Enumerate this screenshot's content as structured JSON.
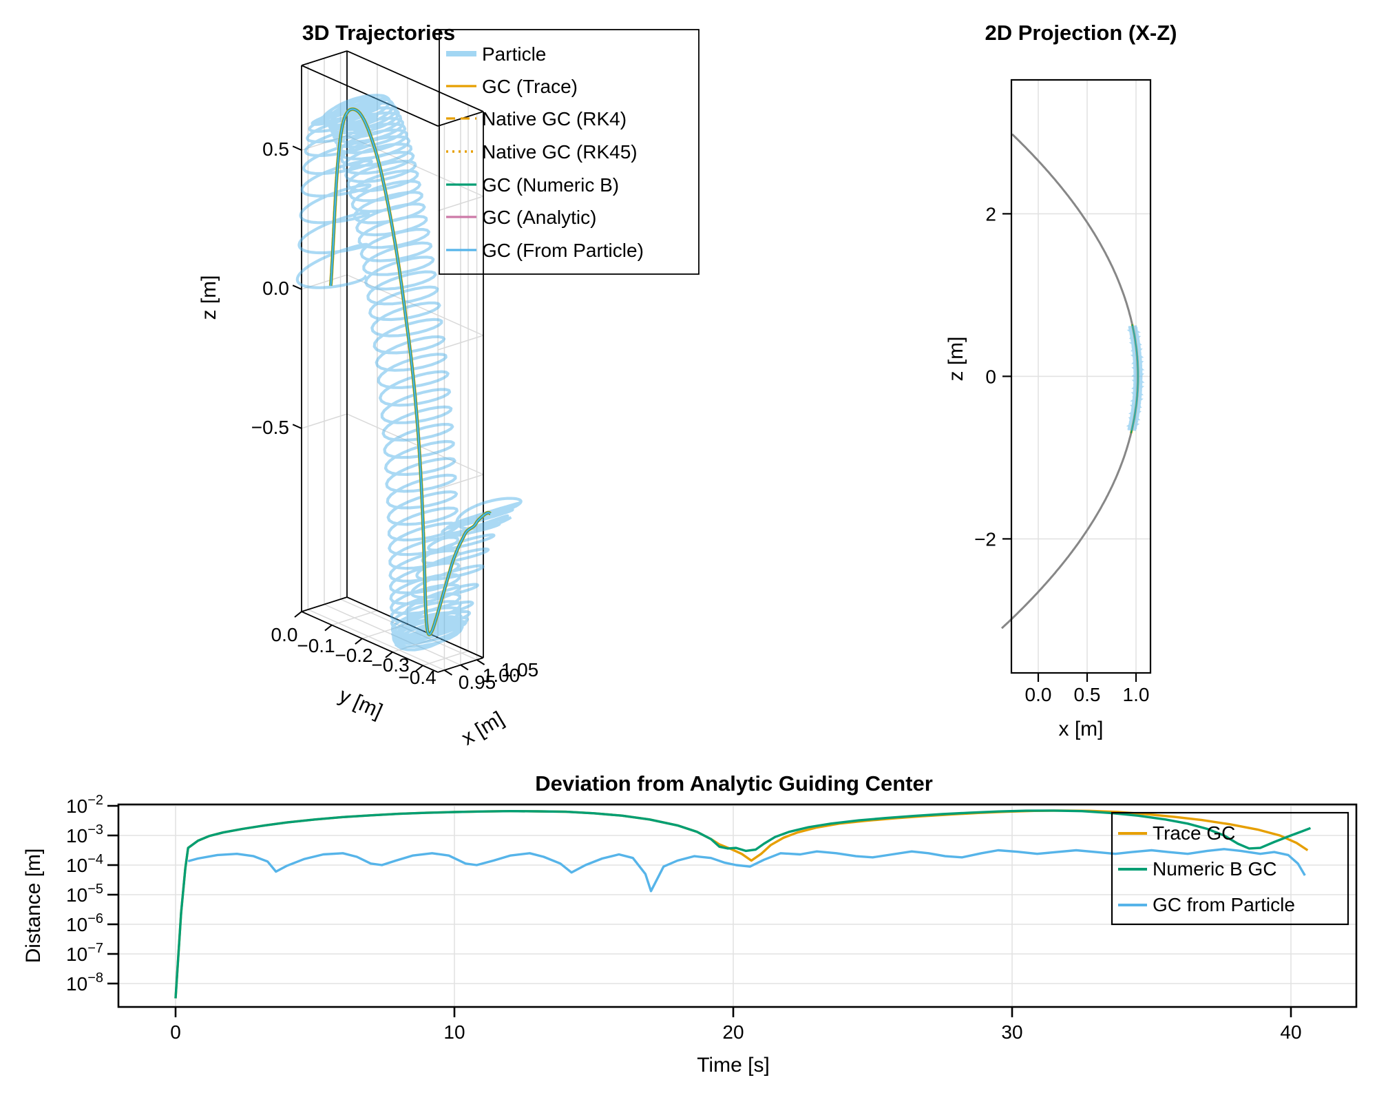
{
  "colors": {
    "particle": "#56B4E9",
    "trace_gc": "#E69F00",
    "numeric_b_gc": "#009E73",
    "analytic_gc": "#CC79A7",
    "from_particle_gc": "#56B4E9",
    "fieldline": "#878787",
    "grid": "#e2e2e2",
    "grid3d": "#d9d9d9",
    "frame": "#000000"
  },
  "panels": {
    "trajectories3d": {
      "title": "3D Trajectories",
      "xlabel": "x [m]",
      "ylabel": "y [m]",
      "zlabel": "z [m]",
      "xticks": [
        "0.95",
        "1.00",
        "1.05"
      ],
      "yticks": [
        "0.0",
        "−0.1",
        "−0.2",
        "−0.3",
        "−0.4"
      ],
      "zticks": [
        "0.5",
        "0.0",
        "−0.5"
      ],
      "legend": [
        {
          "label": "Particle",
          "color": "#56B4E9",
          "style": "thick"
        },
        {
          "label": "GC (Trace)",
          "color": "#E69F00",
          "style": "solid"
        },
        {
          "label": "Native GC (RK4)",
          "color": "#E69F00",
          "style": "dashed"
        },
        {
          "label": "Native GC (RK45)",
          "color": "#E69F00",
          "style": "dotted"
        },
        {
          "label": "GC (Numeric B)",
          "color": "#009E73",
          "style": "solid"
        },
        {
          "label": "GC (Analytic)",
          "color": "#CC79A7",
          "style": "solid"
        },
        {
          "label": "GC (From Particle)",
          "color": "#56B4E9",
          "style": "solid"
        }
      ]
    },
    "projection2d": {
      "title": "2D Projection (X-Z)",
      "xlabel": "x [m]",
      "ylabel": "z [m]",
      "xticks": [
        "0.0",
        "0.5",
        "1.0"
      ],
      "yticks": [
        "2",
        "0",
        "−2"
      ]
    },
    "deviation": {
      "title": "Deviation from Analytic Guiding Center",
      "xlabel": "Time [s]",
      "ylabel": "Distance [m]",
      "xticks": [
        "0",
        "10",
        "20",
        "30",
        "40"
      ],
      "ytick_exponents": [
        "−2",
        "−3",
        "−4",
        "−5",
        "−6",
        "−7",
        "−8"
      ],
      "legend": [
        {
          "label": "Trace GC",
          "color": "#E69F00"
        },
        {
          "label": "Numeric B GC",
          "color": "#009E73"
        },
        {
          "label": "GC from Particle",
          "color": "#56B4E9"
        }
      ]
    }
  },
  "chart_data": [
    {
      "type": "line",
      "panel": "trajectories3d",
      "title": "3D Trajectories",
      "xlabel": "x [m]",
      "ylabel": "y [m]",
      "zlabel": "z [m]",
      "xticks": [
        0.95,
        1.0,
        1.05
      ],
      "yticks": [
        0.0,
        -0.1,
        -0.2,
        -0.3,
        -0.4
      ],
      "zticks": [
        0.5,
        0.0,
        -0.5
      ],
      "gc_time_step": 1.0,
      "gc_y": [
        0.0,
        -0.007,
        -0.014,
        -0.022,
        -0.031,
        -0.04,
        -0.05,
        -0.061,
        -0.072,
        -0.085,
        -0.099,
        -0.114,
        -0.13,
        -0.148,
        -0.166,
        -0.185,
        -0.205,
        -0.225,
        -0.248,
        -0.268,
        -0.285,
        -0.3,
        -0.312,
        -0.322,
        -0.33,
        -0.337,
        -0.345,
        -0.353,
        -0.362,
        -0.371,
        -0.38,
        -0.389,
        -0.4,
        -0.412,
        -0.424,
        -0.445,
        -0.455,
        -0.465,
        -0.472,
        -0.478,
        -0.483,
        -0.488
      ],
      "gc_z_visual": [
        -0.02,
        0.13,
        0.27,
        0.39,
        0.485,
        0.555,
        0.605,
        0.635,
        0.65,
        0.655,
        0.648,
        0.622,
        0.575,
        0.505,
        0.408,
        0.285,
        0.14,
        -0.025,
        -0.21,
        -0.4,
        -0.585,
        -0.76,
        -0.905,
        -1.015,
        -1.08,
        -1.105,
        -1.09,
        -1.047,
        -0.99,
        -0.932,
        -0.877,
        -0.826,
        -0.78,
        -0.74,
        -0.706,
        -0.678,
        -0.655,
        -0.638,
        -0.627,
        -0.619,
        -0.615,
        -0.616
      ],
      "x_model": {
        "base": 1.02,
        "fieldline_coeff": 0.1,
        "z_visual_to_data": 0.59,
        "drift_per_s": 0.0012
      },
      "gyro": {
        "r_x": 0.1,
        "r_perp": 0.038,
        "omega_slow": 8,
        "omega_fast": 20,
        "omega_end": 5
      },
      "t_end": 41
    },
    {
      "type": "line",
      "panel": "projection2d",
      "title": "2D Projection (X-Z)",
      "xlabel": "x [m]",
      "ylabel": "z [m]",
      "xticks": [
        0.0,
        0.5,
        1.0
      ],
      "yticks": [
        2,
        0,
        -2
      ],
      "fieldline": {
        "apex_x": 1.02,
        "curvature": 0.145,
        "z_range": [
          -3.12,
          2.98
        ]
      },
      "particle_band": {
        "x_amplitude": 0.045,
        "z_range": [
          -0.66,
          0.615
        ],
        "gyro_wavelength_z": 0.022
      },
      "gc_overlay_z_range": [
        -0.72,
        0.64
      ]
    },
    {
      "type": "line",
      "panel": "deviation",
      "title": "Deviation from Analytic Guiding Center",
      "xlabel": "Time [s]",
      "ylabel": "Distance [m]",
      "xlim": [
        -2,
        42.3
      ],
      "ylim_exponents": [
        -8.8,
        -1.95
      ],
      "series": [
        {
          "name": "Trace GC",
          "color": "#E69F00",
          "points_t_log10": [
            [
              0,
              -8.5
            ],
            [
              0.2,
              -5.6
            ],
            [
              0.35,
              -4.1
            ],
            [
              0.45,
              -3.42
            ],
            [
              0.8,
              -3.18
            ],
            [
              1.2,
              -3.02
            ],
            [
              1.7,
              -2.9
            ],
            [
              2.4,
              -2.78
            ],
            [
              3.2,
              -2.66
            ],
            [
              4,
              -2.56
            ],
            [
              5,
              -2.46
            ],
            [
              6,
              -2.38
            ],
            [
              7,
              -2.32
            ],
            [
              8,
              -2.27
            ],
            [
              9,
              -2.235
            ],
            [
              10,
              -2.21
            ],
            [
              11,
              -2.19
            ],
            [
              12,
              -2.18
            ],
            [
              13,
              -2.185
            ],
            [
              14,
              -2.2
            ],
            [
              15,
              -2.25
            ],
            [
              16,
              -2.33
            ],
            [
              17,
              -2.46
            ],
            [
              18,
              -2.66
            ],
            [
              18.7,
              -2.88
            ],
            [
              19.2,
              -3.12
            ],
            [
              19.5,
              -3.3
            ],
            [
              19.9,
              -3.45
            ],
            [
              20.3,
              -3.62
            ],
            [
              20.65,
              -3.85
            ],
            [
              21,
              -3.62
            ],
            [
              21.35,
              -3.32
            ],
            [
              21.8,
              -3.08
            ],
            [
              22.3,
              -2.9
            ],
            [
              23,
              -2.73
            ],
            [
              23.8,
              -2.6
            ],
            [
              24.8,
              -2.5
            ],
            [
              25.8,
              -2.42
            ],
            [
              26.8,
              -2.35
            ],
            [
              27.8,
              -2.29
            ],
            [
              28.8,
              -2.24
            ],
            [
              29.8,
              -2.2
            ],
            [
              30.8,
              -2.17
            ],
            [
              31.8,
              -2.16
            ],
            [
              32.8,
              -2.17
            ],
            [
              33.8,
              -2.21
            ],
            [
              34.8,
              -2.28
            ],
            [
              35.8,
              -2.37
            ],
            [
              36.8,
              -2.48
            ],
            [
              37.8,
              -2.62
            ],
            [
              38.8,
              -2.8
            ],
            [
              39.6,
              -3.0
            ],
            [
              40.2,
              -3.25
            ],
            [
              40.6,
              -3.5
            ]
          ]
        },
        {
          "name": "Numeric B GC",
          "color": "#009E73",
          "points_t_log10": [
            [
              0,
              -8.5
            ],
            [
              0.2,
              -5.6
            ],
            [
              0.35,
              -4.1
            ],
            [
              0.45,
              -3.42
            ],
            [
              0.8,
              -3.18
            ],
            [
              1.2,
              -3.02
            ],
            [
              1.7,
              -2.9
            ],
            [
              2.4,
              -2.78
            ],
            [
              3.2,
              -2.66
            ],
            [
              4,
              -2.56
            ],
            [
              5,
              -2.46
            ],
            [
              6,
              -2.38
            ],
            [
              7,
              -2.32
            ],
            [
              8,
              -2.27
            ],
            [
              9,
              -2.235
            ],
            [
              10,
              -2.21
            ],
            [
              11,
              -2.19
            ],
            [
              12,
              -2.18
            ],
            [
              13,
              -2.185
            ],
            [
              14,
              -2.2
            ],
            [
              15,
              -2.25
            ],
            [
              16,
              -2.33
            ],
            [
              17,
              -2.46
            ],
            [
              18,
              -2.66
            ],
            [
              18.7,
              -2.88
            ],
            [
              19.2,
              -3.12
            ],
            [
              19.5,
              -3.38
            ],
            [
              19.8,
              -3.44
            ],
            [
              20.1,
              -3.42
            ],
            [
              20.45,
              -3.52
            ],
            [
              20.8,
              -3.48
            ],
            [
              21.1,
              -3.28
            ],
            [
              21.5,
              -3.05
            ],
            [
              22,
              -2.88
            ],
            [
              22.7,
              -2.72
            ],
            [
              23.5,
              -2.6
            ],
            [
              24.5,
              -2.49
            ],
            [
              25.5,
              -2.41
            ],
            [
              26.5,
              -2.34
            ],
            [
              27.5,
              -2.28
            ],
            [
              28.5,
              -2.23
            ],
            [
              29.5,
              -2.19
            ],
            [
              30.5,
              -2.165
            ],
            [
              31.5,
              -2.16
            ],
            [
              32.5,
              -2.18
            ],
            [
              33.5,
              -2.24
            ],
            [
              34.5,
              -2.33
            ],
            [
              35.5,
              -2.46
            ],
            [
              36.3,
              -2.6
            ],
            [
              37,
              -2.78
            ],
            [
              37.6,
              -3.0
            ],
            [
              38.1,
              -3.28
            ],
            [
              38.5,
              -3.44
            ],
            [
              38.9,
              -3.42
            ],
            [
              39.4,
              -3.22
            ],
            [
              40,
              -3.0
            ],
            [
              40.4,
              -2.86
            ],
            [
              40.7,
              -2.75
            ]
          ]
        },
        {
          "name": "GC from Particle",
          "color": "#56B4E9",
          "points_t_log10": [
            [
              0.45,
              -3.87
            ],
            [
              0.8,
              -3.78
            ],
            [
              1.5,
              -3.66
            ],
            [
              2.2,
              -3.62
            ],
            [
              2.8,
              -3.7
            ],
            [
              3.3,
              -3.88
            ],
            [
              3.6,
              -4.22
            ],
            [
              4.0,
              -4.02
            ],
            [
              4.6,
              -3.8
            ],
            [
              5.3,
              -3.64
            ],
            [
              6,
              -3.6
            ],
            [
              6.5,
              -3.72
            ],
            [
              7,
              -3.95
            ],
            [
              7.4,
              -4.0
            ],
            [
              7.9,
              -3.85
            ],
            [
              8.5,
              -3.68
            ],
            [
              9.2,
              -3.6
            ],
            [
              9.8,
              -3.68
            ],
            [
              10.4,
              -3.95
            ],
            [
              10.8,
              -4.0
            ],
            [
              11.4,
              -3.85
            ],
            [
              12,
              -3.68
            ],
            [
              12.7,
              -3.6
            ],
            [
              13.2,
              -3.72
            ],
            [
              13.8,
              -3.95
            ],
            [
              14.2,
              -4.25
            ],
            [
              14.7,
              -4.0
            ],
            [
              15.3,
              -3.78
            ],
            [
              15.9,
              -3.64
            ],
            [
              16.4,
              -3.76
            ],
            [
              16.85,
              -4.3
            ],
            [
              17.05,
              -4.88
            ],
            [
              17.5,
              -4.05
            ],
            [
              18,
              -3.85
            ],
            [
              18.6,
              -3.7
            ],
            [
              19.2,
              -3.76
            ],
            [
              19.7,
              -3.92
            ],
            [
              20.1,
              -4.0
            ],
            [
              20.6,
              -4.05
            ],
            [
              21.1,
              -3.82
            ],
            [
              21.7,
              -3.6
            ],
            [
              22.4,
              -3.64
            ],
            [
              23,
              -3.54
            ],
            [
              23.7,
              -3.6
            ],
            [
              24.4,
              -3.7
            ],
            [
              25,
              -3.74
            ],
            [
              25.7,
              -3.64
            ],
            [
              26.4,
              -3.54
            ],
            [
              27,
              -3.6
            ],
            [
              27.6,
              -3.7
            ],
            [
              28.2,
              -3.74
            ],
            [
              28.9,
              -3.6
            ],
            [
              29.5,
              -3.5
            ],
            [
              30.2,
              -3.55
            ],
            [
              30.9,
              -3.62
            ],
            [
              31.6,
              -3.56
            ],
            [
              32.3,
              -3.5
            ],
            [
              33,
              -3.56
            ],
            [
              33.7,
              -3.62
            ],
            [
              34.3,
              -3.56
            ],
            [
              35,
              -3.5
            ],
            [
              35.6,
              -3.56
            ],
            [
              36.3,
              -3.62
            ],
            [
              37,
              -3.52
            ],
            [
              37.6,
              -3.46
            ],
            [
              38.2,
              -3.52
            ],
            [
              38.9,
              -3.62
            ],
            [
              39.4,
              -3.56
            ],
            [
              39.9,
              -3.66
            ],
            [
              40.25,
              -3.95
            ],
            [
              40.5,
              -4.35
            ]
          ]
        }
      ]
    }
  ]
}
